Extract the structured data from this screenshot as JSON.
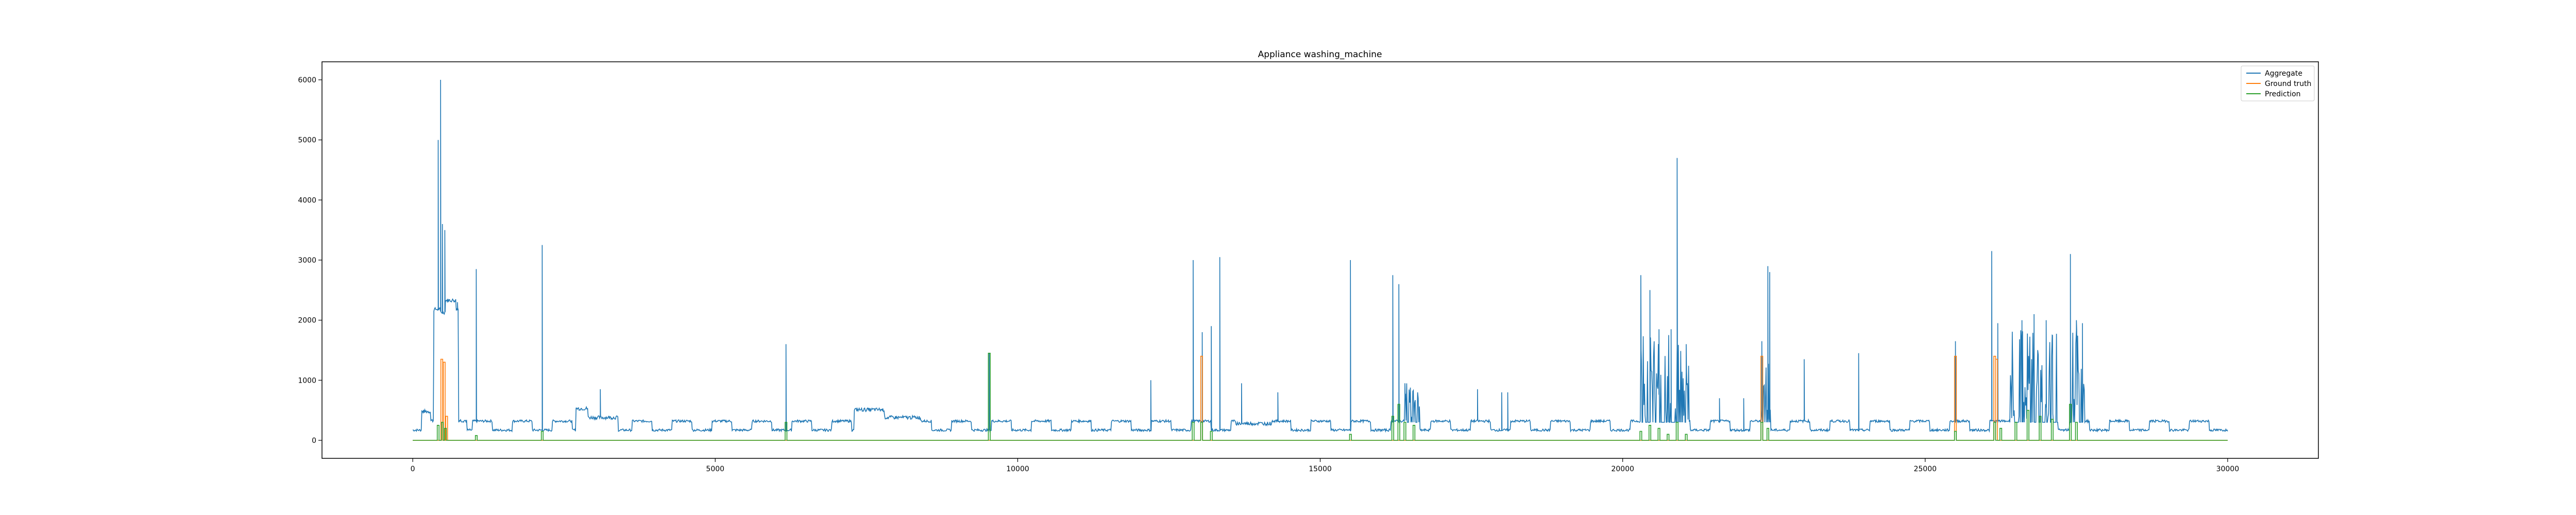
{
  "chart_data": {
    "type": "line",
    "title": "Appliance washing_machine",
    "xlabel": "",
    "ylabel": "",
    "xlim": [
      -1500,
      31500
    ],
    "ylim": [
      -300,
      6300
    ],
    "grid": false,
    "legend_placement": "top-right",
    "x_ticks": [
      0,
      5000,
      10000,
      15000,
      20000,
      25000,
      30000
    ],
    "x_tick_labels": [
      "0",
      "5000",
      "10000",
      "15000",
      "20000",
      "25000",
      "30000"
    ],
    "y_ticks": [
      0,
      1000,
      2000,
      3000,
      4000,
      5000,
      6000
    ],
    "y_tick_labels": [
      "0",
      "1000",
      "2000",
      "3000",
      "4000",
      "5000",
      "6000"
    ],
    "colors": {
      "aggregate": "#1f77b4",
      "ground_truth": "#ff7f0e",
      "prediction": "#2ca02c"
    },
    "series": [
      {
        "name": "Aggregate",
        "color": "#1f77b4",
        "baseline": {
          "start": 0,
          "end": 30000,
          "low": 150,
          "high": 300,
          "period": 330
        },
        "segments": [
          {
            "x0": 150,
            "x1": 300,
            "y": 450
          },
          {
            "x0": 300,
            "x1": 350,
            "y": 300
          },
          {
            "x0": 350,
            "x1": 460,
            "y": 2150
          },
          {
            "x0": 460,
            "x1": 540,
            "y": 2100
          },
          {
            "x0": 540,
            "x1": 720,
            "y": 2300
          },
          {
            "x0": 720,
            "x1": 760,
            "y": 2150
          },
          {
            "x0": 760,
            "x1": 900,
            "y": 300
          },
          {
            "x0": 2700,
            "x1": 2900,
            "y": 500
          },
          {
            "x0": 2900,
            "x1": 3400,
            "y": 350
          },
          {
            "x0": 7300,
            "x1": 7800,
            "y": 480
          },
          {
            "x0": 7800,
            "x1": 8400,
            "y": 350
          },
          {
            "x0": 13600,
            "x1": 14200,
            "y": 250
          }
        ],
        "spikes": [
          [
            420,
            5000
          ],
          [
            460,
            6000
          ],
          [
            490,
            3600
          ],
          [
            530,
            3500
          ],
          [
            680,
            2300
          ],
          [
            740,
            2300
          ],
          [
            1050,
            2850
          ],
          [
            2140,
            3250
          ],
          [
            3100,
            850
          ],
          [
            6170,
            1600
          ],
          [
            9530,
            1450
          ],
          [
            12200,
            1000
          ],
          [
            12900,
            3000
          ],
          [
            13050,
            1800
          ],
          [
            13200,
            1900
          ],
          [
            13340,
            3050
          ],
          [
            13700,
            950
          ],
          [
            14300,
            800
          ],
          [
            15500,
            3000
          ],
          [
            16200,
            2750
          ],
          [
            16300,
            2600
          ],
          [
            16400,
            950
          ],
          [
            17600,
            850
          ],
          [
            18000,
            800
          ],
          [
            18100,
            800
          ],
          [
            20300,
            2750
          ],
          [
            20450,
            2500
          ],
          [
            20600,
            1850
          ],
          [
            20800,
            1850
          ],
          [
            20900,
            4700
          ],
          [
            21050,
            1600
          ],
          [
            21600,
            700
          ],
          [
            22000,
            700
          ],
          [
            22300,
            1650
          ],
          [
            22400,
            2900
          ],
          [
            22430,
            2800
          ],
          [
            23000,
            1350
          ],
          [
            23900,
            1450
          ],
          [
            25500,
            1650
          ],
          [
            26100,
            3150
          ],
          [
            26200,
            1950
          ],
          [
            26600,
            2000
          ],
          [
            26800,
            2100
          ],
          [
            27000,
            2000
          ],
          [
            27100,
            1750
          ],
          [
            27400,
            3100
          ],
          [
            27500,
            2000
          ],
          [
            27600,
            1950
          ]
        ],
        "bursts": [
          {
            "x0": 16400,
            "x1": 16550,
            "low": 300,
            "high": 950
          },
          {
            "x0": 16550,
            "x1": 16650,
            "low": 300,
            "high": 800
          },
          {
            "x0": 20300,
            "x1": 21100,
            "low": 300,
            "high": 1800
          },
          {
            "x0": 22300,
            "x1": 22450,
            "low": 300,
            "high": 1600
          },
          {
            "x0": 26400,
            "x1": 27200,
            "low": 300,
            "high": 1900
          },
          {
            "x0": 27400,
            "x1": 27650,
            "low": 300,
            "high": 1900
          }
        ]
      },
      {
        "name": "Ground truth",
        "color": "#ff7f0e",
        "pulses": [
          [
            480,
            1350
          ],
          [
            520,
            1300
          ],
          [
            560,
            400
          ],
          [
            13040,
            1400
          ],
          [
            22300,
            1400
          ],
          [
            25500,
            1400
          ],
          [
            26150,
            1400
          ],
          [
            26180,
            1350
          ]
        ]
      },
      {
        "name": "Prediction",
        "color": "#2ca02c",
        "pulses": [
          [
            420,
            250
          ],
          [
            490,
            300
          ],
          [
            540,
            200
          ],
          [
            1050,
            80
          ],
          [
            2140,
            150
          ],
          [
            6170,
            300
          ],
          [
            9530,
            1450
          ],
          [
            12900,
            300
          ],
          [
            13040,
            300
          ],
          [
            13200,
            150
          ],
          [
            15500,
            100
          ],
          [
            16200,
            400
          ],
          [
            16300,
            600
          ],
          [
            16400,
            300
          ],
          [
            16550,
            250
          ],
          [
            20300,
            150
          ],
          [
            20450,
            250
          ],
          [
            20600,
            200
          ],
          [
            20750,
            100
          ],
          [
            20900,
            300
          ],
          [
            21050,
            100
          ],
          [
            22300,
            300
          ],
          [
            22400,
            200
          ],
          [
            25500,
            150
          ],
          [
            26150,
            300
          ],
          [
            26250,
            200
          ],
          [
            26500,
            300
          ],
          [
            26700,
            500
          ],
          [
            26900,
            400
          ],
          [
            27100,
            350
          ],
          [
            27400,
            600
          ],
          [
            27500,
            300
          ]
        ]
      }
    ]
  }
}
